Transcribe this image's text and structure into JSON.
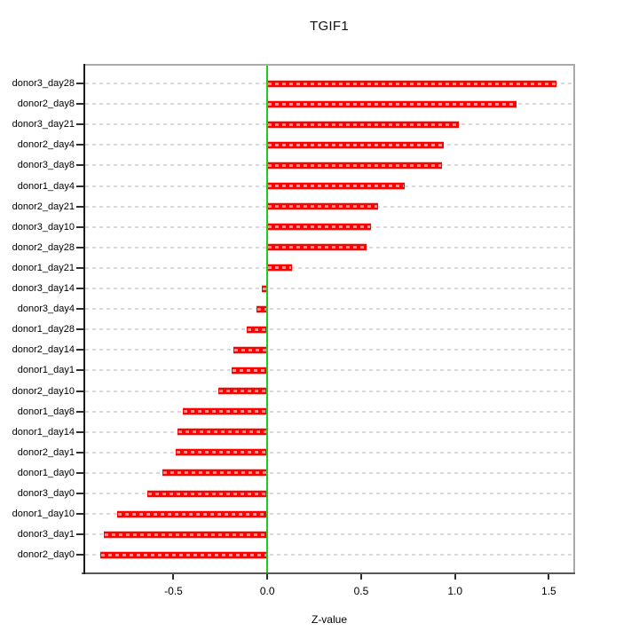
{
  "chart_data": {
    "type": "bar",
    "orientation": "horizontal",
    "title": "TGIF1",
    "xlabel": "Z-value",
    "ylabel": "",
    "categories": [
      "donor3_day28",
      "donor2_day8",
      "donor3_day21",
      "donor2_day4",
      "donor3_day8",
      "donor1_day4",
      "donor2_day21",
      "donor3_day10",
      "donor2_day28",
      "donor1_day21",
      "donor3_day14",
      "donor3_day4",
      "donor1_day28",
      "donor2_day14",
      "donor1_day1",
      "donor2_day10",
      "donor1_day8",
      "donor1_day14",
      "donor2_day1",
      "donor1_day0",
      "donor3_day0",
      "donor1_day10",
      "donor3_day1",
      "donor2_day0"
    ],
    "values": [
      1.54,
      1.33,
      1.02,
      0.94,
      0.93,
      0.73,
      0.59,
      0.55,
      0.53,
      0.13,
      -0.03,
      -0.06,
      -0.11,
      -0.18,
      -0.19,
      -0.26,
      -0.45,
      -0.48,
      -0.49,
      -0.56,
      -0.64,
      -0.8,
      -0.87,
      -0.89
    ],
    "xlim": [
      -0.98,
      1.64
    ],
    "xticks": [
      -0.5,
      0.0,
      0.5,
      1.0,
      1.5
    ],
    "xtick_labels": [
      "-0.5",
      "0.0",
      "0.5",
      "1.0",
      "1.5"
    ],
    "grid": true,
    "legend_position": "none",
    "colors": {
      "bar": "#ff0000",
      "bar_inner_dash": "rgba(255,255,255,0.55)",
      "zero_line": "#1ecb1e",
      "grid": "#dadada",
      "text": "#000000"
    }
  }
}
